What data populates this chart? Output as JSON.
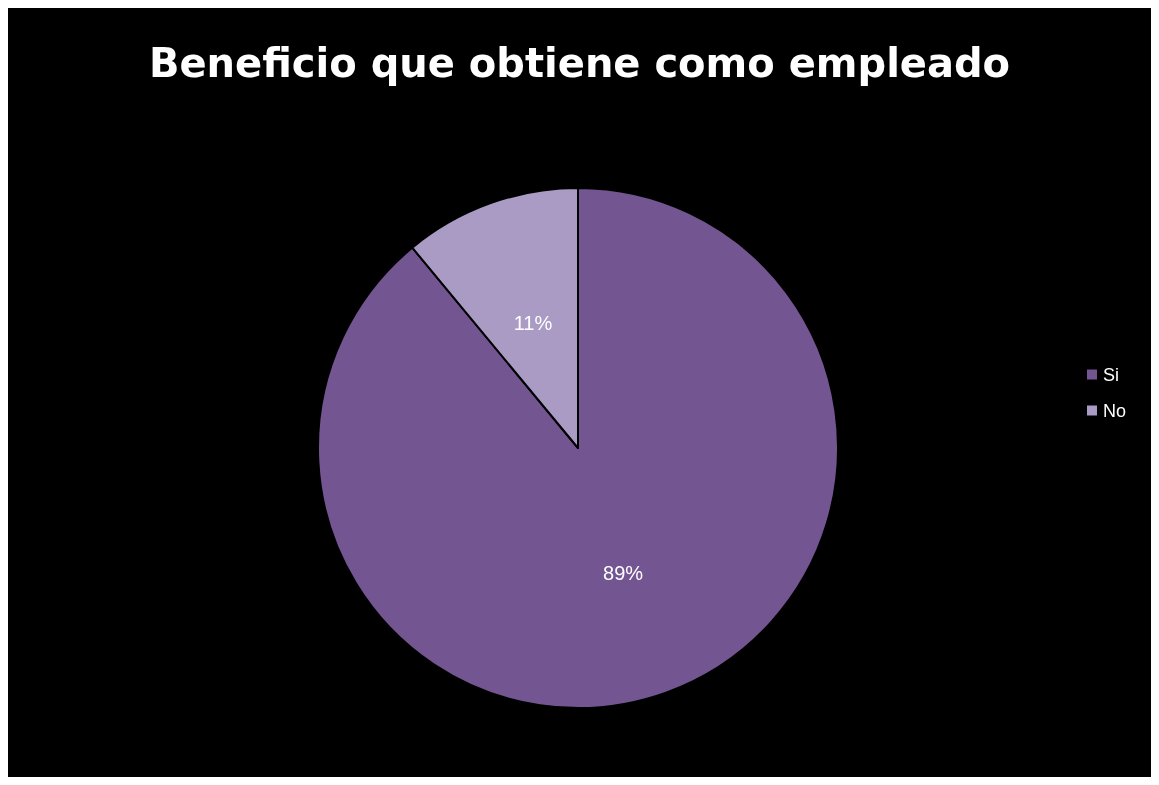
{
  "chart_data": {
    "type": "pie",
    "title": "Beneficio que obtiene como empleado",
    "categories": [
      "Si",
      "No"
    ],
    "values": [
      89,
      11
    ],
    "value_labels": [
      "89%",
      "11%"
    ],
    "colors": [
      "#735592",
      "#a99bc4"
    ],
    "legend": "right"
  }
}
